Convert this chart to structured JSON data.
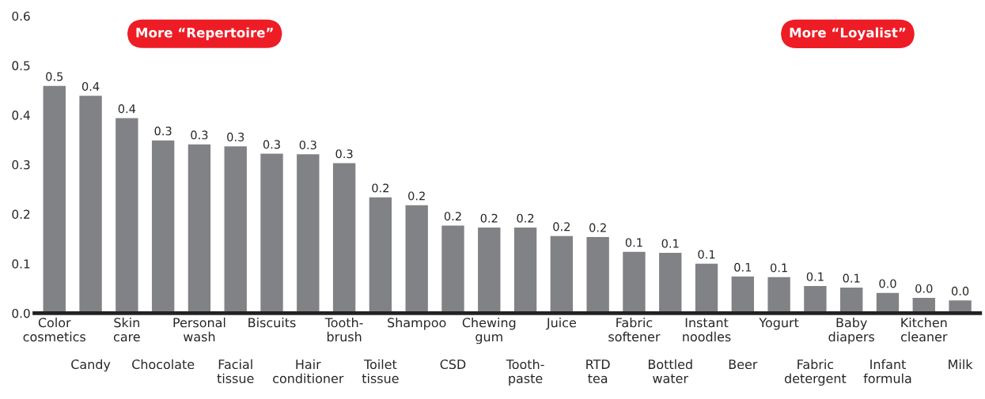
{
  "chart_data": {
    "type": "bar",
    "categories": [
      "Color\ncosmetics",
      "Candy",
      "Skin\ncare",
      "Chocolate",
      "Personal\nwash",
      "Facial\ntissue",
      "Biscuits",
      "Hair\nconditioner",
      "Tooth-\nbrush",
      "Toilet\ntissue",
      "Shampoo",
      "CSD",
      "Chewing\ngum",
      "Tooth-\npaste",
      "Juice",
      "RTD\ntea",
      "Fabric\nsoftener",
      "Bottled\nwater",
      "Instant\nnoodles",
      "Beer",
      "Yogurt",
      "Fabric\ndetergent",
      "Baby\ndiapers",
      "Infant\nformula",
      "Kitchen\ncleaner",
      "Milk"
    ],
    "values": [
      0.46,
      0.44,
      0.395,
      0.35,
      0.342,
      0.338,
      0.323,
      0.322,
      0.304,
      0.235,
      0.219,
      0.178,
      0.174,
      0.174,
      0.157,
      0.155,
      0.125,
      0.123,
      0.101,
      0.075,
      0.074,
      0.056,
      0.053,
      0.042,
      0.032,
      0.027
    ],
    "value_labels": [
      "0.5",
      "0.4",
      "0.4",
      "0.3",
      "0.3",
      "0.3",
      "0.3",
      "0.3",
      "0.3",
      "0.2",
      "0.2",
      "0.2",
      "0.2",
      "0.2",
      "0.2",
      "0.2",
      "0.1",
      "0.1",
      "0.1",
      "0.1",
      "0.1",
      "0.1",
      "0.1",
      "0.0",
      "0.0",
      "0.0"
    ],
    "color": "#818286",
    "ylim": [
      0,
      0.6
    ],
    "yticks": [
      {
        "value": 0,
        "label": "0.0"
      },
      0.1,
      0.2,
      0.3,
      0.4,
      0.5,
      0.6
    ],
    "grid": false,
    "annotations": [
      "More “Repertoire”",
      "More “Loyalist”"
    ]
  }
}
